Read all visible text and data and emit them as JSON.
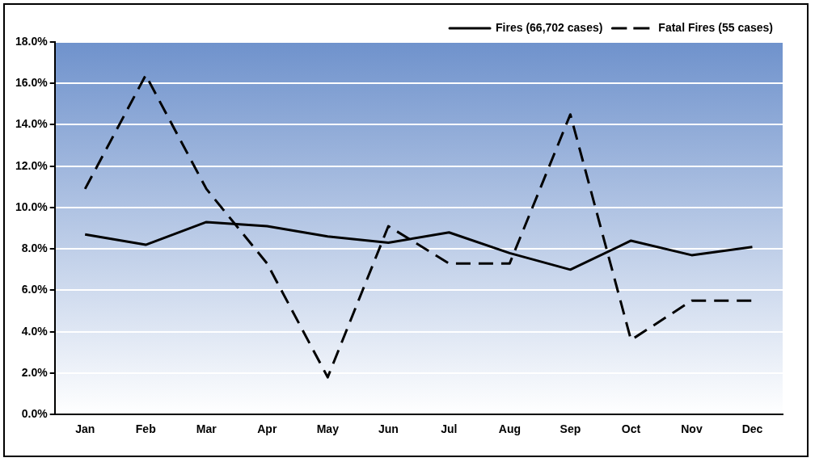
{
  "chart_data": {
    "type": "line",
    "categories": [
      "Jan",
      "Feb",
      "Mar",
      "Apr",
      "May",
      "Jun",
      "Jul",
      "Aug",
      "Sep",
      "Oct",
      "Nov",
      "Dec"
    ],
    "series": [
      {
        "name": "Fires (66,702 cases)",
        "color": "#000000",
        "line_style": "solid",
        "values": [
          8.7,
          8.2,
          9.3,
          9.1,
          8.6,
          8.3,
          8.8,
          7.8,
          7.0,
          8.4,
          7.7,
          8.1
        ]
      },
      {
        "name": "Fatal Fires (55 cases)",
        "color": "#000000",
        "line_style": "dashed",
        "values": [
          10.9,
          16.4,
          10.9,
          7.3,
          1.8,
          9.1,
          7.3,
          7.3,
          14.5,
          3.6,
          5.5,
          5.5
        ]
      }
    ],
    "ylim": [
      0,
      18
    ],
    "yticks": [
      {
        "value": 0,
        "label": "0.0%"
      },
      {
        "value": 2,
        "label": "2.0%"
      },
      {
        "value": 4,
        "label": "4.0%"
      },
      {
        "value": 6,
        "label": "6.0%"
      },
      {
        "value": 8,
        "label": "8.0%"
      },
      {
        "value": 10,
        "label": "10.0%"
      },
      {
        "value": 12,
        "label": "12.0%"
      },
      {
        "value": 14,
        "label": "14.0%"
      },
      {
        "value": 16,
        "label": "16.0%"
      },
      {
        "value": 18,
        "label": "18.0%"
      }
    ],
    "grid": "y",
    "legend": "top right",
    "marker": "none"
  }
}
